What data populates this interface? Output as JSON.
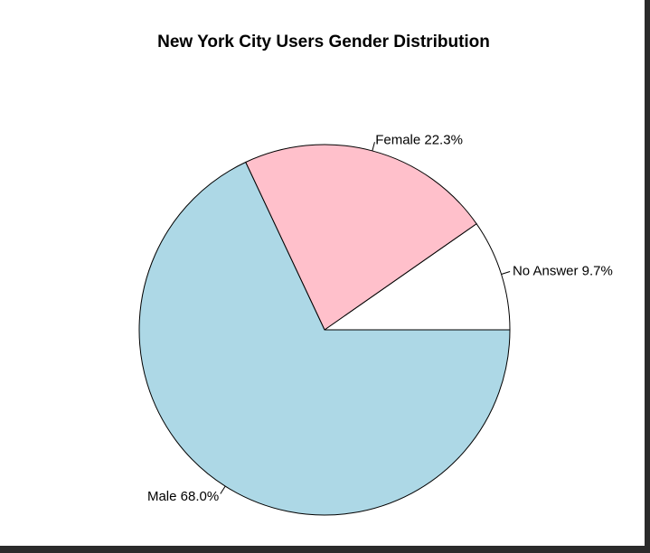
{
  "chart_data": {
    "type": "pie",
    "title": "New York City Users Gender Distribution",
    "slices": [
      {
        "label": "No Answer 9.7%",
        "value": 9.7,
        "color": "#ffffff"
      },
      {
        "label": "Female 22.3%",
        "value": 22.3,
        "color": "#ffc0cb"
      },
      {
        "label": "Male 68.0%",
        "value": 68.0,
        "color": "#add8e6"
      }
    ],
    "start_angle_deg": 0,
    "direction": "counterclockwise",
    "border_color": "#000000"
  }
}
